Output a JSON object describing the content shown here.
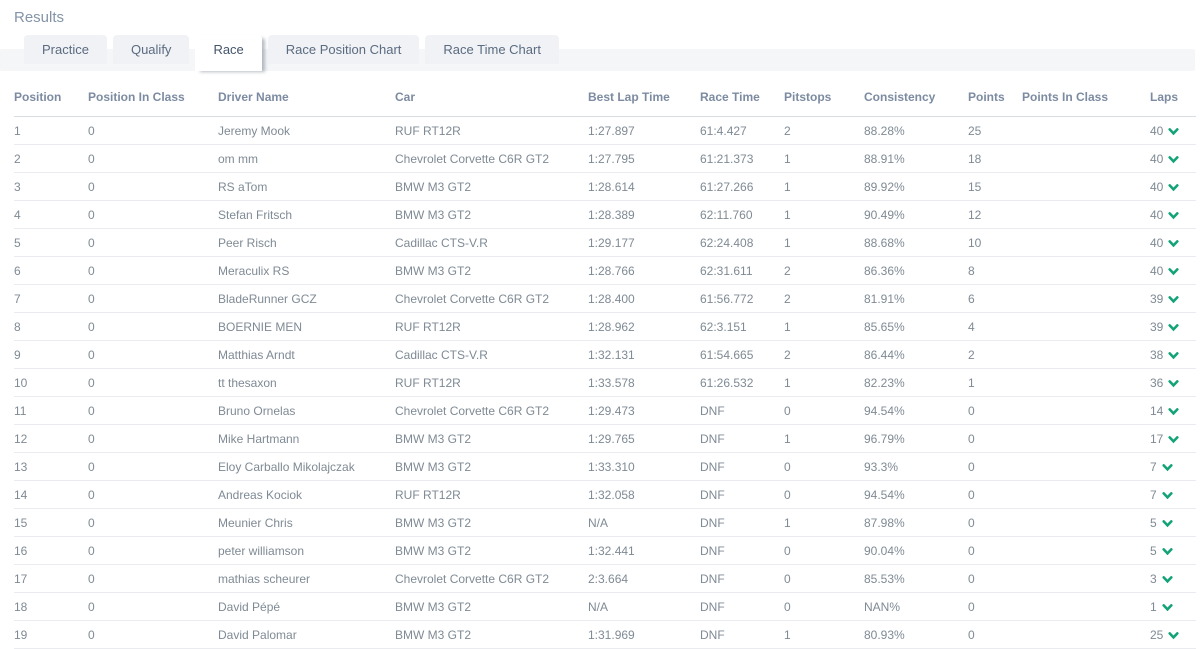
{
  "page": {
    "title": "Results"
  },
  "tabs": [
    {
      "label": "Practice",
      "active": false
    },
    {
      "label": "Qualify",
      "active": false
    },
    {
      "label": "Race",
      "active": true
    },
    {
      "label": "Race Position Chart",
      "active": false
    },
    {
      "label": "Race Time Chart",
      "active": false
    }
  ],
  "colors": {
    "link_green": "#42b79c",
    "chevron_green": "#14a378",
    "header_text": "#7c8ba1",
    "cell_text": "#7f8a94"
  },
  "icons": {
    "laps_expander": "chevron-down-icon"
  },
  "table": {
    "columns": [
      "Position",
      "Position In Class",
      "Driver Name",
      "Car",
      "Best Lap Time",
      "Race Time",
      "Pitstops",
      "Consistency",
      "Points",
      "Points In Class",
      "Laps"
    ],
    "rows": [
      [
        "1",
        "0",
        "Jeremy Mook",
        "RUF RT12R",
        "1:27.897",
        "61:4.427",
        "2",
        "88.28%",
        "25",
        "",
        "40"
      ],
      [
        "2",
        "0",
        "om mm",
        "Chevrolet Corvette C6R GT2",
        "1:27.795",
        "61:21.373",
        "1",
        "88.91%",
        "18",
        "",
        "40"
      ],
      [
        "3",
        "0",
        "RS aTom",
        "BMW M3 GT2",
        "1:28.614",
        "61:27.266",
        "1",
        "89.92%",
        "15",
        "",
        "40"
      ],
      [
        "4",
        "0",
        "Stefan Fritsch",
        "BMW M3 GT2",
        "1:28.389",
        "62:11.760",
        "1",
        "90.49%",
        "12",
        "",
        "40"
      ],
      [
        "5",
        "0",
        "Peer Risch",
        "Cadillac CTS-V.R",
        "1:29.177",
        "62:24.408",
        "1",
        "88.68%",
        "10",
        "",
        "40"
      ],
      [
        "6",
        "0",
        "Meraculix RS",
        "BMW M3 GT2",
        "1:28.766",
        "62:31.611",
        "2",
        "86.36%",
        "8",
        "",
        "40"
      ],
      [
        "7",
        "0",
        "BladeRunner GCZ",
        "Chevrolet Corvette C6R GT2",
        "1:28.400",
        "61:56.772",
        "2",
        "81.91%",
        "6",
        "",
        "39"
      ],
      [
        "8",
        "0",
        "BOERNIE MEN",
        "RUF RT12R",
        "1:28.962",
        "62:3.151",
        "1",
        "85.65%",
        "4",
        "",
        "39"
      ],
      [
        "9",
        "0",
        "Matthias Arndt",
        "Cadillac CTS-V.R",
        "1:32.131",
        "61:54.665",
        "2",
        "86.44%",
        "2",
        "",
        "38"
      ],
      [
        "10",
        "0",
        "tt thesaxon",
        "RUF RT12R",
        "1:33.578",
        "61:26.532",
        "1",
        "82.23%",
        "1",
        "",
        "36"
      ],
      [
        "11",
        "0",
        "Bruno Ornelas",
        "Chevrolet Corvette C6R GT2",
        "1:29.473",
        "DNF",
        "0",
        "94.54%",
        "0",
        "",
        "14"
      ],
      [
        "12",
        "0",
        "Mike Hartmann",
        "BMW M3 GT2",
        "1:29.765",
        "DNF",
        "1",
        "96.79%",
        "0",
        "",
        "17"
      ],
      [
        "13",
        "0",
        "Eloy Carballo Mikolajczak",
        "BMW M3 GT2",
        "1:33.310",
        "DNF",
        "0",
        "93.3%",
        "0",
        "",
        "7"
      ],
      [
        "14",
        "0",
        "Andreas Kociok",
        "RUF RT12R",
        "1:32.058",
        "DNF",
        "0",
        "94.54%",
        "0",
        "",
        "7"
      ],
      [
        "15",
        "0",
        "Meunier Chris",
        "BMW M3 GT2",
        "N/A",
        "DNF",
        "1",
        "87.98%",
        "0",
        "",
        "5"
      ],
      [
        "16",
        "0",
        "peter williamson",
        "BMW M3 GT2",
        "1:32.441",
        "DNF",
        "0",
        "90.04%",
        "0",
        "",
        "5"
      ],
      [
        "17",
        "0",
        "mathias scheurer",
        "Chevrolet Corvette C6R GT2",
        "2:3.664",
        "DNF",
        "0",
        "85.53%",
        "0",
        "",
        "3"
      ],
      [
        "18",
        "0",
        "David Pépé",
        "BMW M3 GT2",
        "N/A",
        "DNF",
        "0",
        "NAN%",
        "0",
        "",
        "1"
      ],
      [
        "19",
        "0",
        "David Palomar",
        "BMW M3 GT2",
        "1:31.969",
        "DNF",
        "1",
        "80.93%",
        "0",
        "",
        "25"
      ]
    ]
  }
}
